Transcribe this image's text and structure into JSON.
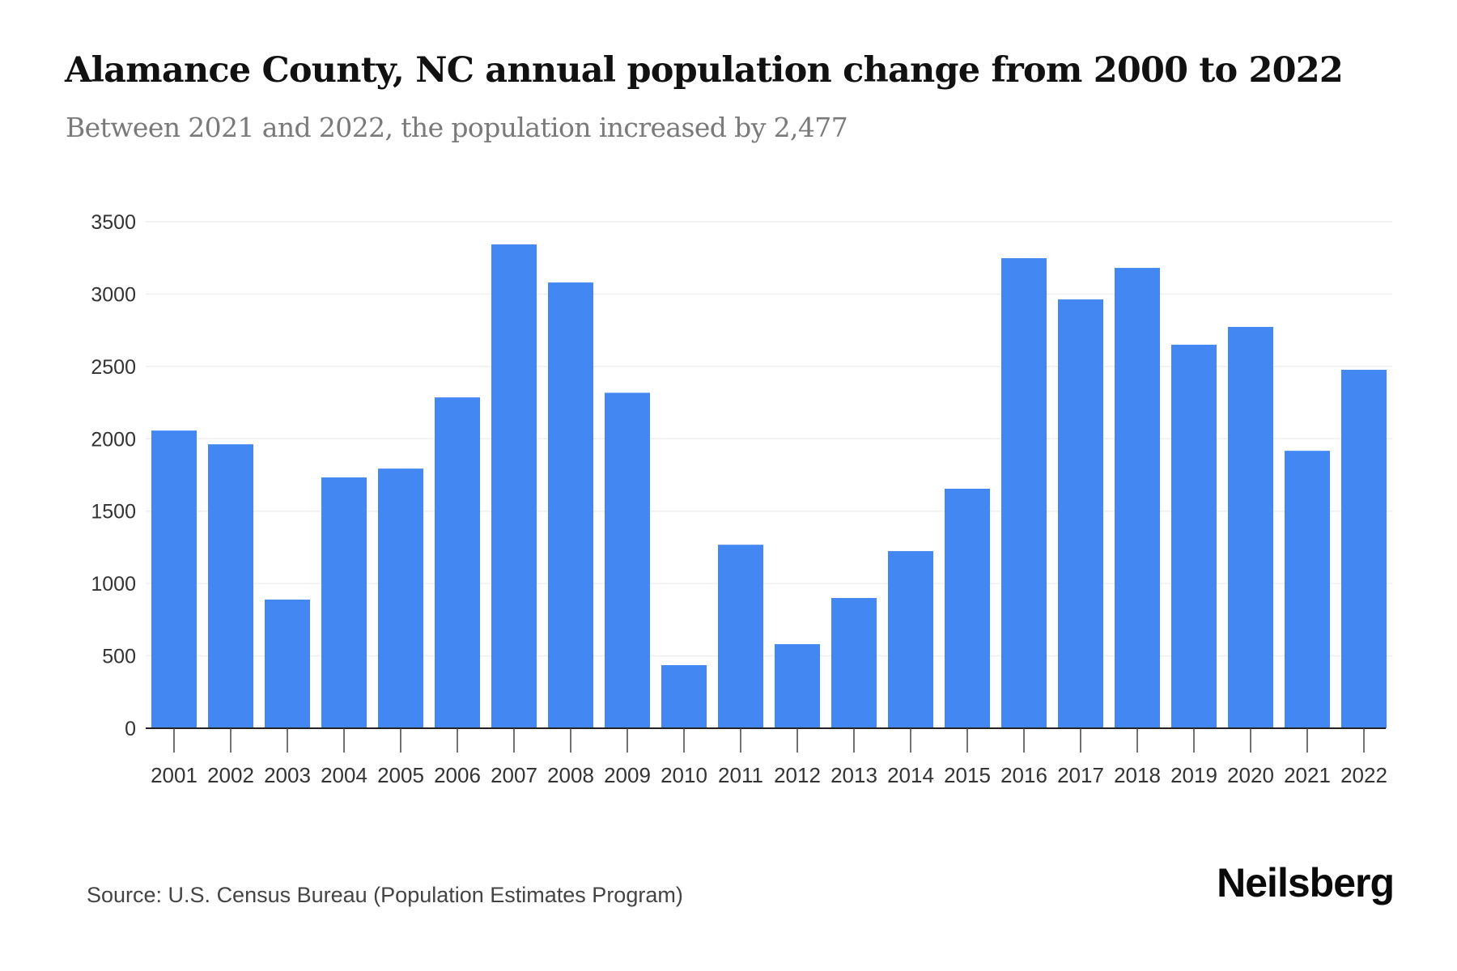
{
  "header": {
    "title": "Alamance County, NC annual population change from 2000 to 2022",
    "subtitle": "Between 2021 and 2022, the population increased by 2,477"
  },
  "footer": {
    "source": "Source: U.S. Census Bureau (Population Estimates Program)",
    "logo": "Neilsberg"
  },
  "colors": {
    "bar": "#4388F2",
    "grid": "#EFEFEF",
    "axis": "#222222"
  },
  "chart_data": {
    "type": "bar",
    "title": "Alamance County, NC annual population change from 2000 to 2022",
    "subtitle": "Between 2021 and 2022, the population increased by 2,477",
    "xlabel": "",
    "ylabel": "",
    "ylim": [
      0,
      3500
    ],
    "yticks": [
      0,
      500,
      1000,
      1500,
      2000,
      2500,
      3000,
      3500
    ],
    "grid": true,
    "legend": "none",
    "categories": [
      "2001",
      "2002",
      "2003",
      "2004",
      "2005",
      "2006",
      "2007",
      "2008",
      "2009",
      "2010",
      "2011",
      "2012",
      "2013",
      "2014",
      "2015",
      "2016",
      "2017",
      "2018",
      "2019",
      "2020",
      "2021",
      "2022"
    ],
    "values": [
      2057,
      1962,
      889,
      1733,
      1794,
      2286,
      3343,
      3080,
      2318,
      436,
      1268,
      581,
      900,
      1224,
      1655,
      3248,
      2963,
      3181,
      2650,
      2773,
      1917,
      2477
    ]
  }
}
